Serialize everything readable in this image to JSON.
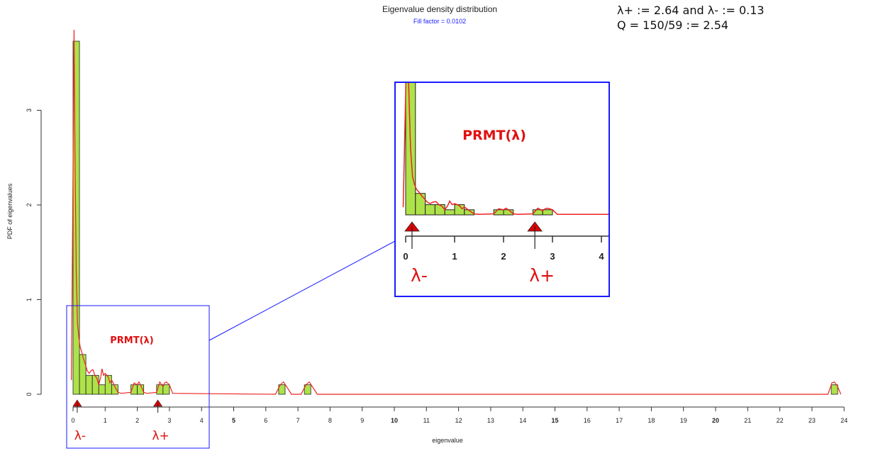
{
  "header": {
    "title": "Eigenvalue density distribution",
    "subtitle": "Fill factor = 0.0102"
  },
  "info": {
    "line1": "λ+ := 2.64 and λ- := 0.13",
    "line2": "Q = 150/59 := 2.54"
  },
  "colors": {
    "bar_fill": "#aee24a",
    "bar_stroke": "#222222",
    "curve": "#ee2222",
    "zoom_box": "#1a1aff",
    "marker": "#e00000",
    "annotation": "#e01010"
  },
  "chart_data": {
    "type": "bar",
    "title": "Eigenvalue density distribution",
    "subtitle": "Fill factor = 0.0102",
    "xlabel": "eigenvalue",
    "ylabel": "PDF of eigenvalues",
    "xlim": [
      0,
      24
    ],
    "ylim": [
      0,
      3.9
    ],
    "x_ticks": [
      0,
      1,
      2,
      3,
      4,
      5,
      6,
      7,
      8,
      9,
      10,
      11,
      12,
      13,
      14,
      15,
      16,
      17,
      18,
      19,
      20,
      21,
      22,
      23,
      24
    ],
    "y_ticks": [
      0,
      1,
      2,
      3
    ],
    "bin_width": 0.2,
    "histogram": [
      {
        "x0": 0.0,
        "x1": 0.2,
        "y": 3.73
      },
      {
        "x0": 0.2,
        "x1": 0.4,
        "y": 0.42
      },
      {
        "x0": 0.4,
        "x1": 0.6,
        "y": 0.2
      },
      {
        "x0": 0.6,
        "x1": 0.8,
        "y": 0.2
      },
      {
        "x0": 0.8,
        "x1": 1.0,
        "y": 0.1
      },
      {
        "x0": 1.0,
        "x1": 1.2,
        "y": 0.2
      },
      {
        "x0": 1.2,
        "x1": 1.4,
        "y": 0.1
      },
      {
        "x0": 1.8,
        "x1": 2.0,
        "y": 0.1
      },
      {
        "x0": 2.0,
        "x1": 2.2,
        "y": 0.1
      },
      {
        "x0": 2.6,
        "x1": 2.8,
        "y": 0.1
      },
      {
        "x0": 2.8,
        "x1": 3.0,
        "y": 0.1
      },
      {
        "x0": 6.4,
        "x1": 6.6,
        "y": 0.1
      },
      {
        "x0": 7.2,
        "x1": 7.4,
        "y": 0.1
      },
      {
        "x0": 23.6,
        "x1": 23.8,
        "y": 0.1
      }
    ],
    "density_curve": {
      "x": [
        -0.05,
        0.0,
        0.03,
        0.06,
        0.1,
        0.14,
        0.18,
        0.22,
        0.27,
        0.32,
        0.38,
        0.44,
        0.5,
        0.56,
        0.62,
        0.68,
        0.74,
        0.8,
        0.86,
        0.9,
        0.95,
        1.0,
        1.05,
        1.1,
        1.15,
        1.2,
        1.25,
        1.3,
        1.4,
        1.5,
        1.8,
        1.9,
        2.0,
        2.05,
        2.1,
        2.2,
        2.3,
        2.6,
        2.7,
        2.8,
        2.85,
        2.9,
        3.0,
        3.1,
        6.3,
        6.45,
        6.55,
        6.65,
        6.8,
        7.1,
        7.25,
        7.35,
        7.45,
        7.6,
        23.5,
        23.62,
        23.7,
        23.8,
        23.9
      ],
      "y": [
        0.15,
        2.4,
        3.85,
        2.6,
        1.3,
        0.75,
        0.6,
        0.5,
        0.45,
        0.38,
        0.32,
        0.25,
        0.22,
        0.25,
        0.26,
        0.2,
        0.17,
        0.1,
        0.18,
        0.27,
        0.2,
        0.22,
        0.2,
        0.18,
        0.12,
        0.15,
        0.12,
        0.08,
        0.02,
        0.01,
        0.02,
        0.12,
        0.1,
        0.13,
        0.1,
        0.02,
        0.01,
        0.02,
        0.13,
        0.08,
        0.12,
        0.13,
        0.1,
        0.01,
        0.0,
        0.1,
        0.13,
        0.08,
        0.0,
        0.0,
        0.1,
        0.13,
        0.08,
        0.0,
        0.0,
        0.12,
        0.13,
        0.08,
        0.0
      ]
    },
    "inset": {
      "annotation": "PRMT(λ)",
      "xlim": [
        0,
        4
      ],
      "x_ticks": [
        0,
        1,
        2,
        3,
        4
      ]
    },
    "markers": [
      {
        "label": "λ-",
        "x": 0.13
      },
      {
        "label": "λ+",
        "x": 2.64
      }
    ]
  }
}
